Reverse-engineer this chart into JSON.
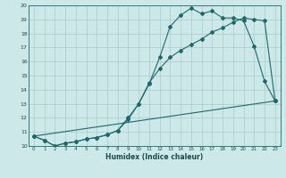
{
  "xlabel": "Humidex (Indice chaleur)",
  "bg_color": "#cce8e8",
  "grid_color": "#aacccc",
  "line_color": "#1a6b6b",
  "xlim": [
    -0.5,
    23.5
  ],
  "ylim": [
    10,
    20
  ],
  "x_ticks": [
    0,
    1,
    2,
    3,
    4,
    5,
    6,
    7,
    8,
    9,
    10,
    11,
    12,
    13,
    14,
    15,
    16,
    17,
    18,
    19,
    20,
    21,
    22,
    23
  ],
  "y_ticks": [
    10,
    11,
    12,
    13,
    14,
    15,
    16,
    17,
    18,
    19,
    20
  ],
  "line1_x": [
    0,
    1,
    2,
    3,
    4,
    5,
    6,
    7,
    8,
    9,
    10,
    11,
    12,
    13,
    14,
    15,
    16,
    17,
    18,
    19,
    20,
    21,
    22,
    23
  ],
  "line1_y": [
    10.7,
    10.4,
    10.0,
    10.2,
    10.3,
    10.5,
    10.6,
    10.8,
    11.1,
    11.9,
    13.0,
    14.4,
    16.3,
    18.5,
    19.3,
    19.8,
    19.4,
    19.6,
    19.1,
    19.1,
    18.9,
    17.1,
    14.6,
    13.2
  ],
  "line2_x": [
    0,
    1,
    2,
    3,
    4,
    5,
    6,
    7,
    8,
    9,
    10,
    11,
    12,
    13,
    14,
    15,
    16,
    17,
    18,
    19,
    20,
    21,
    22,
    23
  ],
  "line2_y": [
    10.7,
    10.4,
    10.0,
    10.2,
    10.3,
    10.5,
    10.6,
    10.8,
    11.1,
    12.0,
    13.0,
    14.5,
    15.5,
    16.3,
    16.8,
    17.2,
    17.6,
    18.1,
    18.4,
    18.8,
    19.1,
    19.0,
    18.9,
    13.2
  ],
  "line3_x": [
    0,
    23
  ],
  "line3_y": [
    10.7,
    13.2
  ]
}
